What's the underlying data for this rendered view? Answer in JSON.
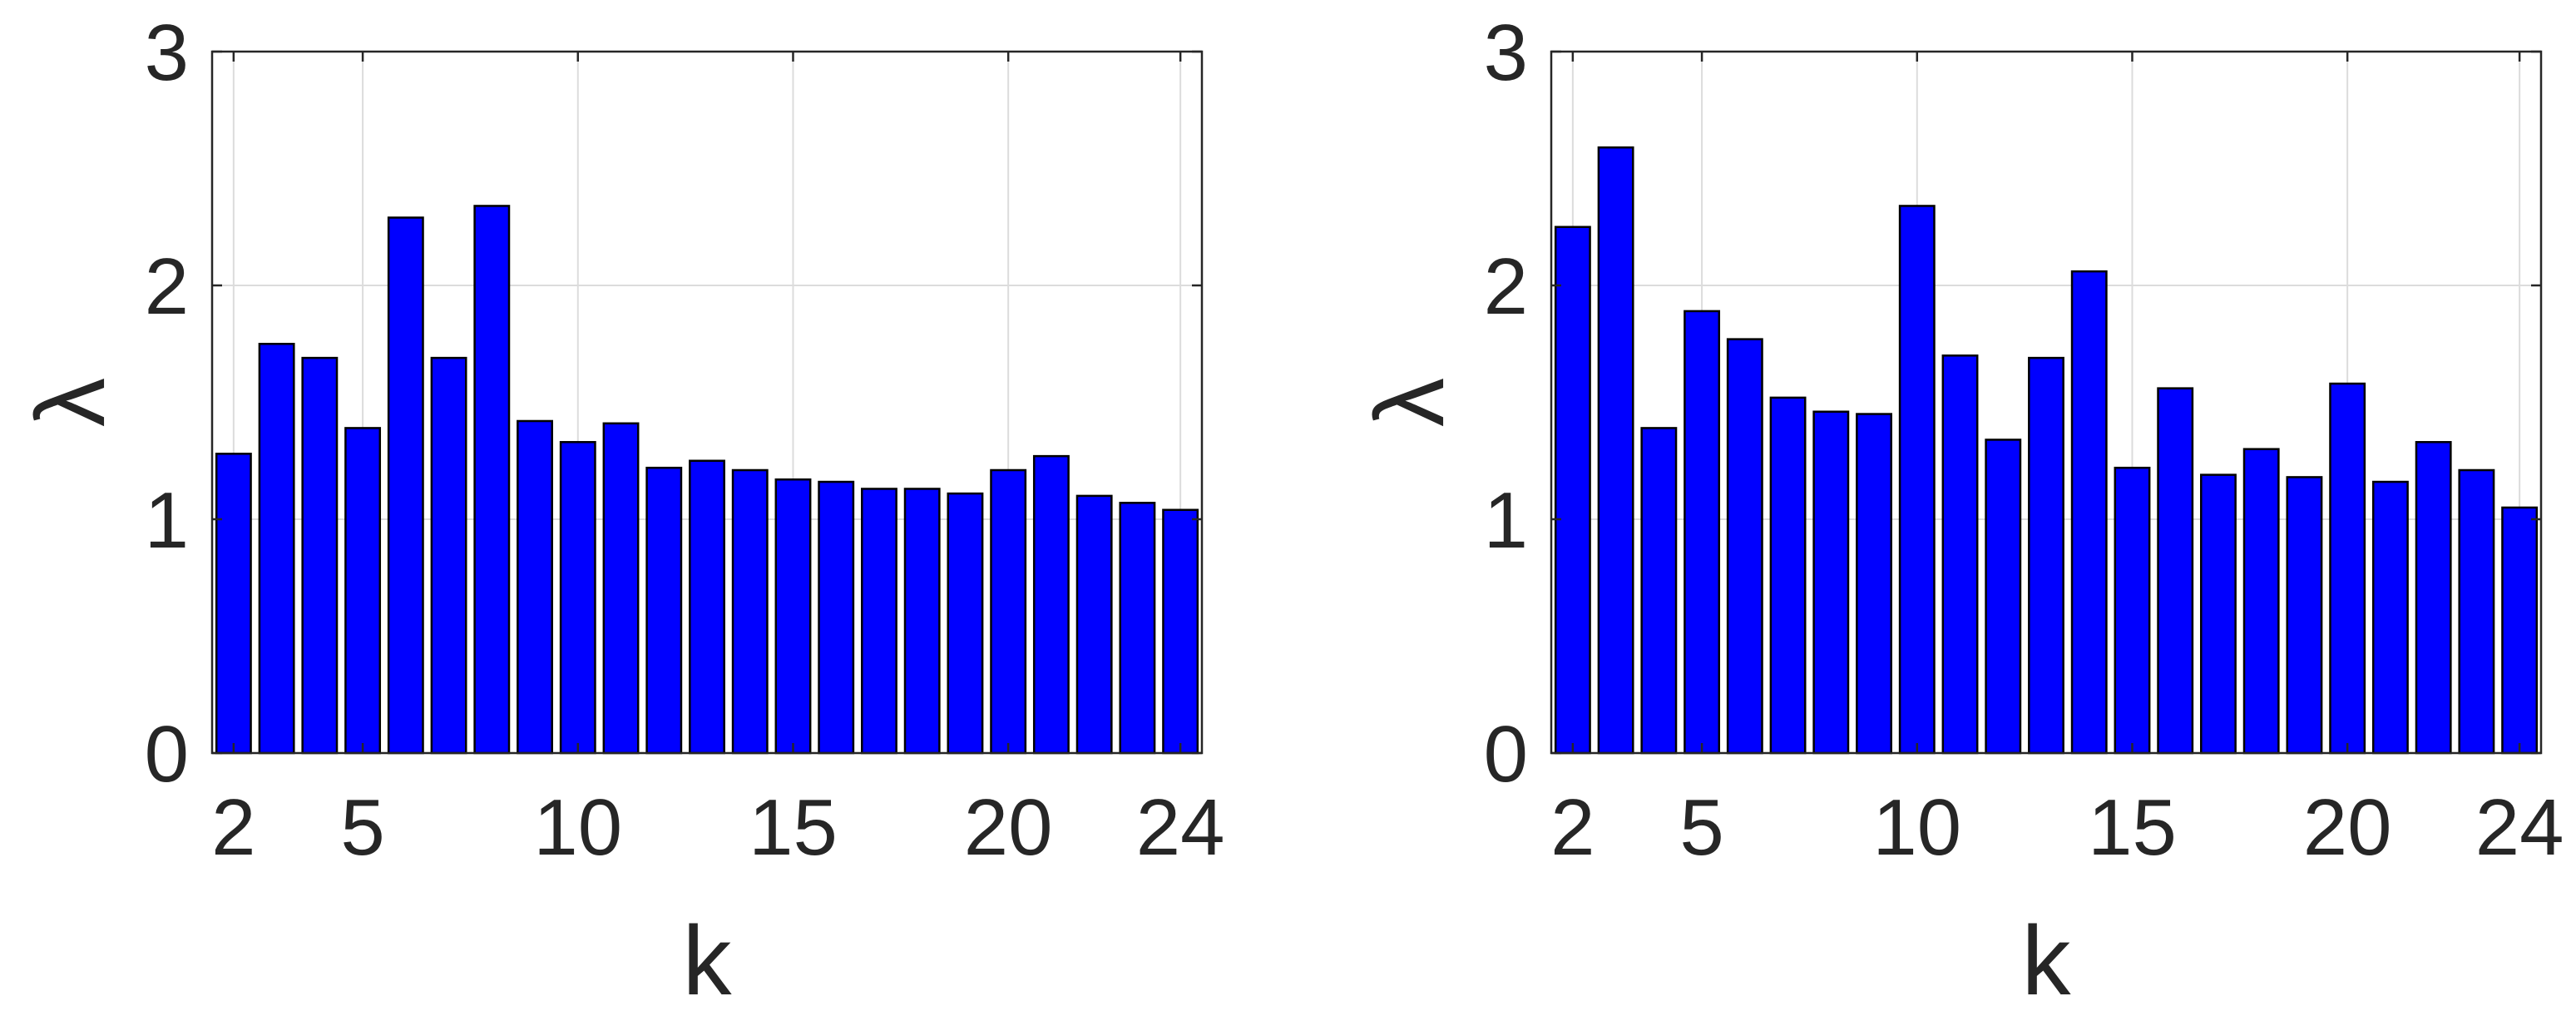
{
  "chart_data": [
    {
      "type": "bar",
      "title": "",
      "xlabel": "k",
      "ylabel": "λ",
      "x": [
        2,
        3,
        4,
        5,
        6,
        7,
        8,
        9,
        10,
        11,
        12,
        13,
        14,
        15,
        16,
        17,
        18,
        19,
        20,
        21,
        22,
        23,
        24
      ],
      "values": [
        1.28,
        1.75,
        1.69,
        1.39,
        2.29,
        1.69,
        2.34,
        1.42,
        1.33,
        1.41,
        1.22,
        1.25,
        1.21,
        1.17,
        1.16,
        1.13,
        1.13,
        1.11,
        1.21,
        1.27,
        1.1,
        1.07,
        1.04
      ],
      "xlim": [
        2,
        24
      ],
      "ylim": [
        0,
        3
      ],
      "xticks": [
        "2",
        "5",
        "10",
        "15",
        "20",
        "24"
      ],
      "yticks": [
        "0",
        "1",
        "2",
        "3"
      ],
      "grid": true,
      "bar_color": "#0000ff"
    },
    {
      "type": "bar",
      "title": "",
      "xlabel": "k",
      "ylabel": "λ",
      "x": [
        2,
        3,
        4,
        5,
        6,
        7,
        8,
        9,
        10,
        11,
        12,
        13,
        14,
        15,
        16,
        17,
        18,
        19,
        20,
        21,
        22,
        23,
        24
      ],
      "values": [
        2.25,
        2.59,
        1.39,
        1.89,
        1.77,
        1.52,
        1.46,
        1.45,
        2.34,
        1.7,
        1.34,
        1.69,
        2.06,
        1.22,
        1.56,
        1.19,
        1.3,
        1.18,
        1.58,
        1.16,
        1.33,
        1.21,
        1.05
      ],
      "xlim": [
        2,
        24
      ],
      "ylim": [
        0,
        3
      ],
      "xticks": [
        "2",
        "5",
        "10",
        "15",
        "20",
        "24"
      ],
      "yticks": [
        "0",
        "1",
        "2",
        "3"
      ],
      "grid": true,
      "bar_color": "#0000ff"
    }
  ]
}
